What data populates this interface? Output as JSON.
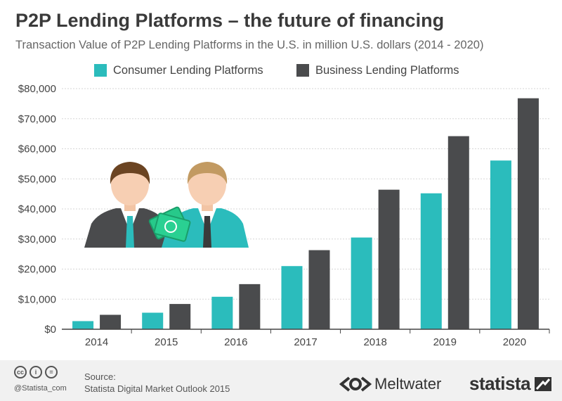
{
  "title": "P2P Lending Platforms – the future of financing",
  "subtitle": "Transaction Value of P2P Lending Platforms in the U.S. in million U.S. dollars (2014 - 2020)",
  "colors": {
    "consumer": "#2bbcbc",
    "business": "#4a4b4d",
    "grid": "#d6d6d6",
    "axis": "#444444"
  },
  "chart_data": {
    "type": "bar",
    "title": "P2P Lending Platforms – the future of financing",
    "subtitle": "Transaction Value of P2P Lending Platforms in the U.S. in million U.S. dollars (2014 - 2020)",
    "categories": [
      "2014",
      "2015",
      "2016",
      "2017",
      "2018",
      "2019",
      "2020"
    ],
    "series": [
      {
        "name": "Consumer Lending Platforms",
        "values": [
          2700,
          5500,
          10800,
          21000,
          30500,
          45200,
          56100
        ]
      },
      {
        "name": "Business Lending Platforms",
        "values": [
          4800,
          8400,
          15000,
          26300,
          46400,
          64200,
          76800
        ]
      }
    ],
    "ylim": [
      0,
      80000
    ],
    "yticks": [
      0,
      10000,
      20000,
      30000,
      40000,
      50000,
      60000,
      70000,
      80000
    ],
    "ytick_labels": [
      "$0",
      "$10,000",
      "$20,000",
      "$30,000",
      "$40,000",
      "$50,000",
      "$60,000",
      "$70,000",
      "$80,000"
    ],
    "grid": true,
    "legend": "top"
  },
  "footer": {
    "handle": "@Statista_com",
    "source_label": "Source:",
    "source_text": "Statista Digital Market Outlook 2015",
    "cc_icons": [
      "cc-icon",
      "by-icon",
      "nd-icon"
    ],
    "cc_glyphs": [
      "cc",
      "i",
      "="
    ],
    "meltwater": "Meltwater",
    "statista": "statista"
  }
}
